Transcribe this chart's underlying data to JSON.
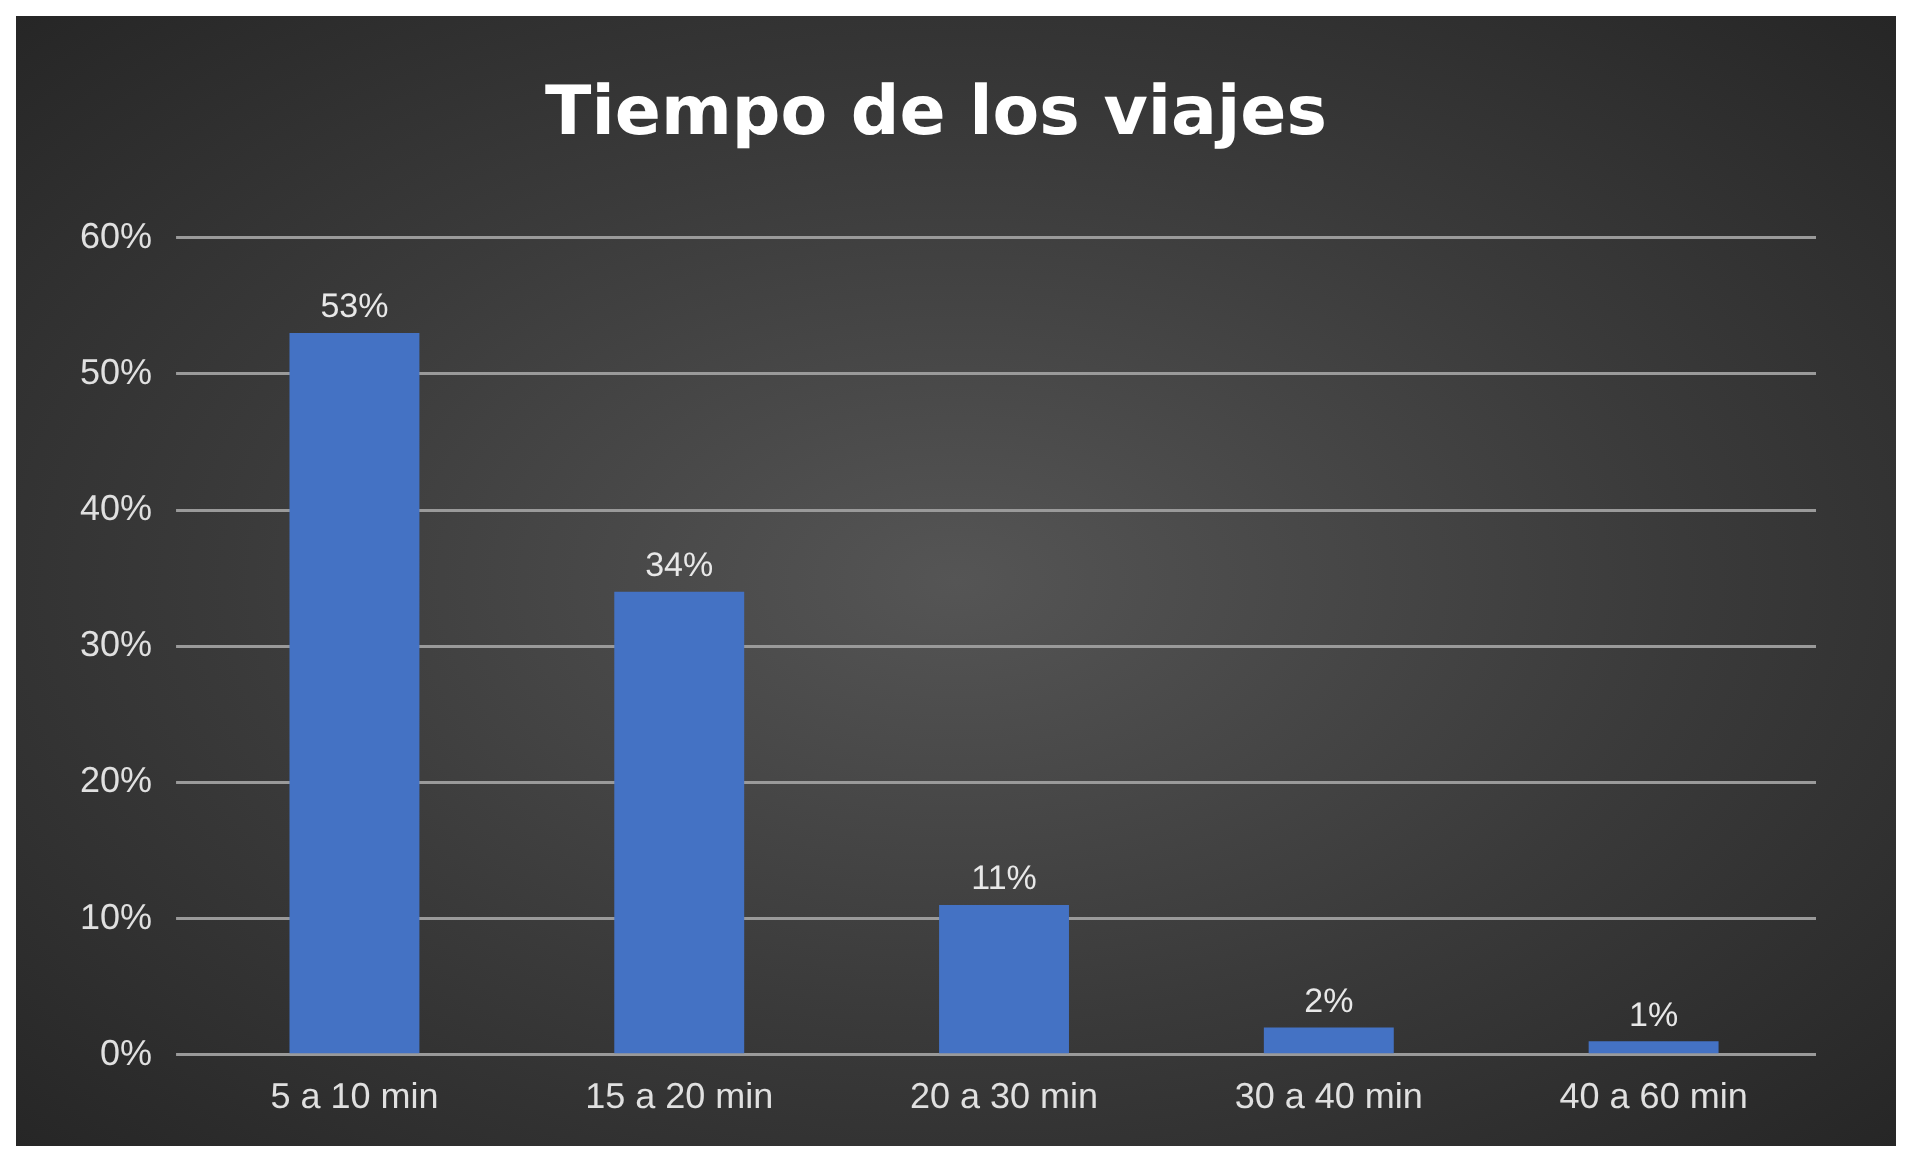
{
  "chart_data": {
    "type": "bar",
    "title": "Tiempo de los viajes",
    "categories": [
      "5 a 10 min",
      "15 a 20 min",
      "20 a 30 min",
      "30 a 40 min",
      "40 a 60 min"
    ],
    "values": [
      53,
      34,
      11,
      2,
      1
    ],
    "value_labels": [
      "53%",
      "34%",
      "11%",
      "2%",
      "1%"
    ],
    "color": "#4472c4",
    "ylim": [
      0,
      60
    ],
    "yticks": [
      {
        "value": 0,
        "label": "0%"
      },
      {
        "value": 10,
        "label": "10%"
      },
      {
        "value": 20,
        "label": "20%"
      },
      {
        "value": 30,
        "label": "30%"
      },
      {
        "value": 40,
        "label": "40%"
      },
      {
        "value": 50,
        "label": "50%"
      },
      {
        "value": 60,
        "label": "60%"
      }
    ],
    "grid": "y",
    "legend": false
  }
}
